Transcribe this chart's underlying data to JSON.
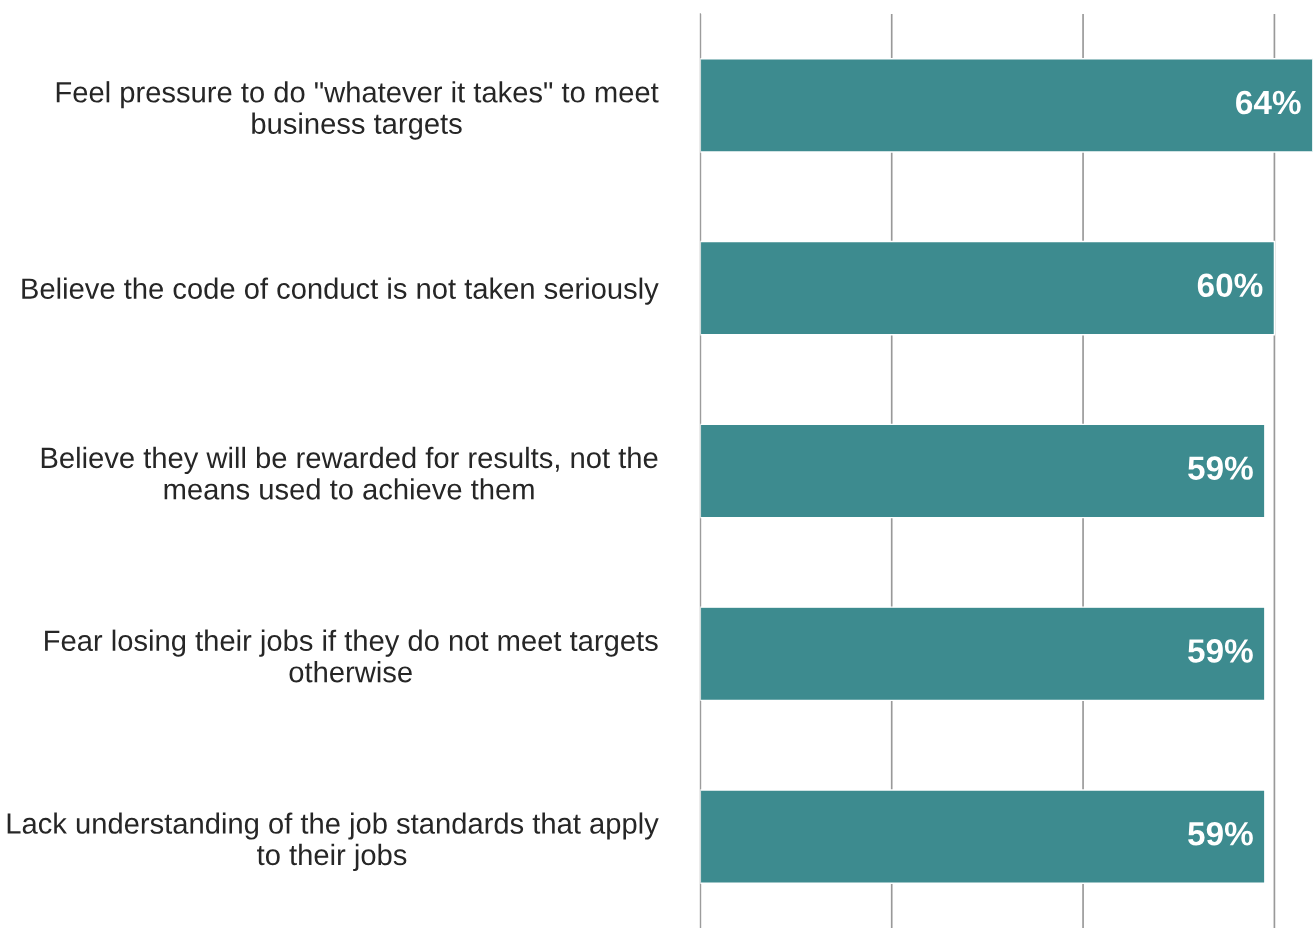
{
  "chart_data": {
    "type": "bar",
    "orientation": "horizontal",
    "categories": [
      "Feel pressure to do \"whatever it takes\" to meet business targets",
      "Believe the code of conduct is not taken seriously",
      "Believe they will be rewarded for results, not the means used to achieve them",
      "Fear losing their jobs if they do not meet targets otherwise",
      "Lack understanding of the job standards that apply to their jobs"
    ],
    "values": [
      64,
      60,
      59,
      59,
      59
    ],
    "value_labels": [
      "64%",
      "60%",
      "59%",
      "59%",
      "59%"
    ],
    "color": "#3d8b8f",
    "xlim": [
      0,
      64
    ],
    "xticks": [
      {
        "value": 0,
        "label": null
      },
      {
        "value": 20,
        "label": null
      },
      {
        "value": 40,
        "label": null
      },
      {
        "value": 60,
        "label": null
      }
    ],
    "grid": "x",
    "tick_labels": "y",
    "legend": false
  }
}
